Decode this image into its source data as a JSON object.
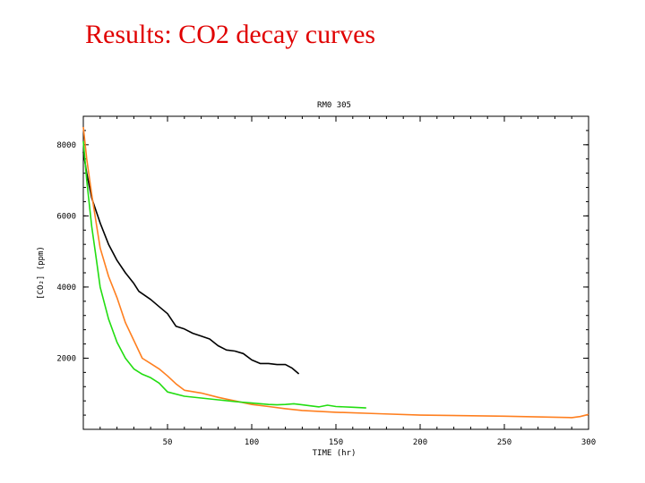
{
  "slide": {
    "title": "Results: CO2 decay curves"
  },
  "chart_data": {
    "type": "line",
    "title": "RM0 305",
    "xlabel": "TIME (hr)",
    "ylabel": "[CO₂] (ppm)",
    "xlim": [
      0,
      300
    ],
    "ylim": [
      0,
      8800
    ],
    "xticks": [
      50,
      100,
      150,
      200,
      250,
      300
    ],
    "yticks": [
      2000,
      4000,
      6000,
      8000
    ],
    "grid": false,
    "series": [
      {
        "color": "#000000",
        "x": [
          0,
          2,
          5,
          10,
          15,
          20,
          25,
          30,
          33,
          40,
          45,
          50,
          55,
          60,
          65,
          70,
          75,
          80,
          85,
          90,
          95,
          100,
          105,
          110,
          115,
          120,
          124,
          128
        ],
        "y": [
          7800,
          7200,
          6500,
          5800,
          5200,
          4750,
          4400,
          4100,
          3880,
          3650,
          3450,
          3250,
          2900,
          2820,
          2700,
          2620,
          2540,
          2350,
          2230,
          2200,
          2130,
          1950,
          1850,
          1850,
          1820,
          1820,
          1720,
          1560
        ]
      },
      {
        "color": "#ff7f1f",
        "x": [
          0,
          2,
          5,
          8,
          10,
          15,
          20,
          25,
          30,
          35,
          40,
          45,
          50,
          55,
          60,
          70,
          80,
          90,
          100,
          110,
          120,
          130,
          150,
          175,
          200,
          250,
          290,
          295,
          300
        ],
        "y": [
          8500,
          7600,
          6600,
          5700,
          5100,
          4300,
          3700,
          3000,
          2500,
          2000,
          1850,
          1700,
          1500,
          1280,
          1100,
          1020,
          900,
          800,
          700,
          640,
          580,
          530,
          480,
          440,
          400,
          370,
          330,
          360,
          420
        ]
      },
      {
        "color": "#22dd11",
        "x": [
          0,
          2,
          5,
          8,
          10,
          15,
          20,
          25,
          30,
          35,
          40,
          45,
          50,
          60,
          70,
          80,
          90,
          100,
          110,
          115,
          120,
          125,
          130,
          140,
          145,
          150,
          160,
          168
        ],
        "y": [
          8100,
          7000,
          5700,
          4700,
          4000,
          3100,
          2450,
          2000,
          1700,
          1550,
          1450,
          1300,
          1050,
          930,
          880,
          830,
          780,
          740,
          700,
          690,
          700,
          720,
          690,
          630,
          680,
          640,
          620,
          600
        ]
      }
    ]
  }
}
